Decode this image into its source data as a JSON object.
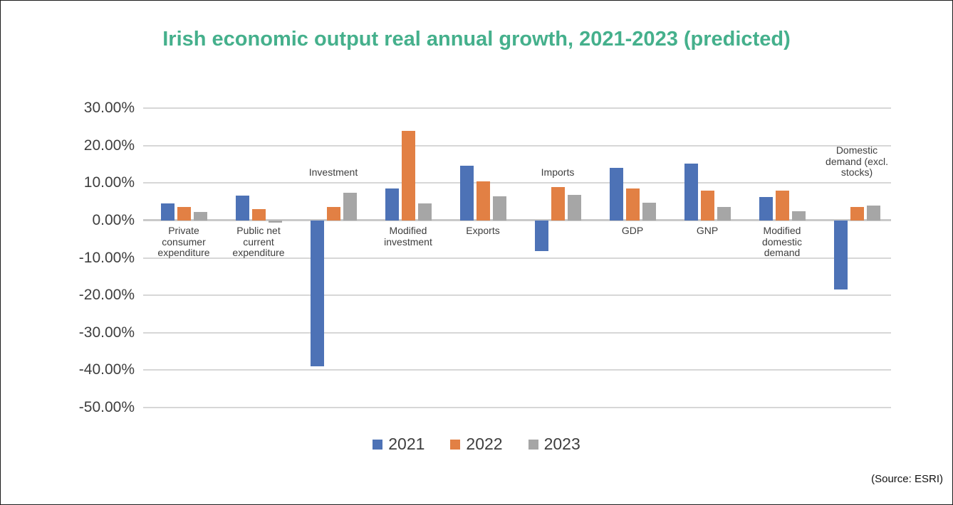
{
  "title": "Irish economic output real annual growth, 2021-2023 (predicted)",
  "source_note": "(Source: ESRI)",
  "colors": {
    "title": "#45b08c",
    "series_2021": "#4d72b6",
    "series_2022": "#e28044",
    "series_2023": "#a6a6a6",
    "gridline": "#d7d7d7",
    "zero_axis": "#c9c9c9",
    "text": "#3e3e3e"
  },
  "chart_data": {
    "type": "bar",
    "title": "Irish economic output real annual growth, 2021-2023 (predicted)",
    "xlabel": "",
    "ylabel": "",
    "ylim": [
      -50,
      30
    ],
    "ytick_step": 10,
    "yticks": [
      30,
      20,
      10,
      0,
      -10,
      -20,
      -30,
      -40,
      -50
    ],
    "ytick_labels": [
      "30.00%",
      "20.00%",
      "10.00%",
      "0.00%",
      "-10.00%",
      "-20.00%",
      "-30.00%",
      "-40.00%",
      "-50.00%"
    ],
    "grid": true,
    "legend_position": "bottom",
    "categories": [
      "Private consumer expenditure",
      "Public net current expenditure",
      "Investment",
      "Modified investment",
      "Exports",
      "Imports",
      "GDP",
      "GNP",
      "Modified domestic demand",
      "Domestic demand (excl. stocks)"
    ],
    "category_label_sides": [
      "below",
      "below",
      "above",
      "below",
      "below",
      "above",
      "below",
      "below",
      "below",
      "above"
    ],
    "series": [
      {
        "name": "2021",
        "color": "#4d72b6",
        "values": [
          4.6,
          6.6,
          -39.0,
          8.5,
          14.6,
          -8.2,
          14.1,
          15.2,
          6.3,
          -18.5
        ]
      },
      {
        "name": "2022",
        "color": "#e28044",
        "values": [
          3.5,
          3.0,
          3.5,
          23.9,
          10.5,
          9.0,
          8.5,
          8.0,
          8.0,
          3.5
        ]
      },
      {
        "name": "2023",
        "color": "#a6a6a6",
        "values": [
          2.3,
          -0.5,
          7.3,
          4.6,
          6.5,
          6.8,
          4.8,
          3.6,
          2.4,
          4.0
        ]
      }
    ],
    "source": "(Source: ESRI)"
  }
}
